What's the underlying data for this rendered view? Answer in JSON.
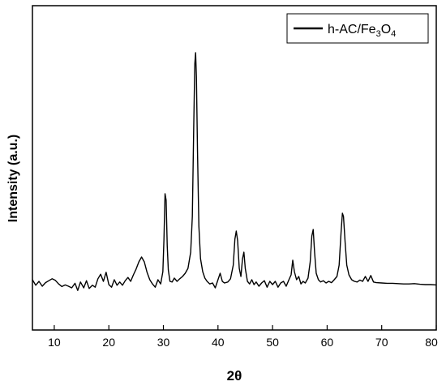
{
  "chart_data": {
    "type": "line",
    "xlabel": "2θ",
    "ylabel": "Intensity (a.u.)",
    "xlim": [
      6,
      80
    ],
    "ylim": [
      0,
      100
    ],
    "y_ticks_shown": false,
    "x_ticks": [
      10,
      20,
      30,
      40,
      50,
      60,
      70,
      80
    ],
    "legend_position": "top-right",
    "grid": false,
    "series": [
      {
        "name": "h-AC/Fe3O4",
        "legend_parts": {
          "prefix": "h-AC/Fe",
          "sub1": "3",
          "mid": "O",
          "sub2": "4"
        },
        "color": "#000000",
        "points": [
          [
            6.0,
            15.5
          ],
          [
            6.6,
            13.8
          ],
          [
            7.2,
            15.0
          ],
          [
            7.8,
            13.5
          ],
          [
            8.4,
            14.6
          ],
          [
            9.0,
            15.2
          ],
          [
            9.6,
            15.8
          ],
          [
            10.2,
            15.3
          ],
          [
            10.8,
            14.2
          ],
          [
            11.4,
            13.4
          ],
          [
            12.0,
            13.9
          ],
          [
            12.6,
            13.5
          ],
          [
            13.2,
            13.0
          ],
          [
            13.8,
            14.4
          ],
          [
            14.3,
            12.2
          ],
          [
            14.8,
            14.8
          ],
          [
            15.4,
            13.0
          ],
          [
            15.9,
            15.2
          ],
          [
            16.4,
            12.8
          ],
          [
            17.0,
            13.8
          ],
          [
            17.5,
            13.2
          ],
          [
            18.0,
            15.8
          ],
          [
            18.5,
            17.2
          ],
          [
            19.0,
            15.0
          ],
          [
            19.5,
            17.8
          ],
          [
            20.0,
            14.0
          ],
          [
            20.5,
            13.2
          ],
          [
            21.0,
            15.5
          ],
          [
            21.5,
            13.8
          ],
          [
            22.0,
            14.8
          ],
          [
            22.5,
            13.8
          ],
          [
            23.0,
            15.2
          ],
          [
            23.5,
            16.2
          ],
          [
            24.0,
            15.0
          ],
          [
            24.5,
            17.0
          ],
          [
            25.0,
            18.8
          ],
          [
            25.5,
            21.0
          ],
          [
            26.0,
            22.5
          ],
          [
            26.5,
            21.0
          ],
          [
            27.0,
            17.8
          ],
          [
            27.5,
            15.5
          ],
          [
            28.0,
            14.2
          ],
          [
            28.5,
            13.2
          ],
          [
            29.0,
            15.5
          ],
          [
            29.5,
            14.2
          ],
          [
            29.9,
            18.0
          ],
          [
            30.1,
            28.0
          ],
          [
            30.3,
            42.0
          ],
          [
            30.5,
            40.0
          ],
          [
            30.7,
            26.0
          ],
          [
            30.9,
            18.5
          ],
          [
            31.2,
            15.0
          ],
          [
            31.6,
            14.8
          ],
          [
            32.0,
            16.0
          ],
          [
            32.5,
            15.0
          ],
          [
            33.0,
            15.8
          ],
          [
            33.5,
            16.5
          ],
          [
            34.0,
            17.5
          ],
          [
            34.5,
            19.0
          ],
          [
            35.0,
            24.0
          ],
          [
            35.3,
            35.0
          ],
          [
            35.55,
            62.0
          ],
          [
            35.75,
            82.0
          ],
          [
            35.9,
            85.5
          ],
          [
            36.05,
            78.0
          ],
          [
            36.25,
            55.0
          ],
          [
            36.5,
            32.0
          ],
          [
            36.8,
            22.0
          ],
          [
            37.2,
            18.0
          ],
          [
            37.6,
            16.0
          ],
          [
            38.0,
            15.0
          ],
          [
            38.5,
            14.2
          ],
          [
            39.0,
            14.5
          ],
          [
            39.5,
            13.0
          ],
          [
            40.0,
            15.5
          ],
          [
            40.4,
            17.5
          ],
          [
            40.8,
            15.0
          ],
          [
            41.2,
            14.5
          ],
          [
            41.8,
            14.8
          ],
          [
            42.3,
            15.8
          ],
          [
            42.8,
            20.0
          ],
          [
            43.1,
            28.0
          ],
          [
            43.35,
            30.5
          ],
          [
            43.6,
            27.5
          ],
          [
            43.9,
            19.0
          ],
          [
            44.2,
            16.5
          ],
          [
            44.5,
            22.0
          ],
          [
            44.75,
            24.0
          ],
          [
            45.0,
            19.0
          ],
          [
            45.4,
            15.0
          ],
          [
            45.8,
            14.2
          ],
          [
            46.2,
            15.5
          ],
          [
            46.6,
            14.0
          ],
          [
            47.0,
            14.8
          ],
          [
            47.5,
            13.5
          ],
          [
            48.0,
            14.5
          ],
          [
            48.5,
            15.2
          ],
          [
            49.0,
            13.2
          ],
          [
            49.5,
            15.0
          ],
          [
            50.0,
            14.0
          ],
          [
            50.5,
            15.0
          ],
          [
            51.0,
            13.2
          ],
          [
            51.5,
            14.5
          ],
          [
            52.0,
            15.0
          ],
          [
            52.5,
            13.5
          ],
          [
            53.0,
            15.5
          ],
          [
            53.4,
            17.0
          ],
          [
            53.7,
            21.5
          ],
          [
            54.0,
            18.0
          ],
          [
            54.4,
            15.5
          ],
          [
            54.8,
            16.5
          ],
          [
            55.2,
            14.2
          ],
          [
            55.6,
            15.0
          ],
          [
            56.0,
            14.5
          ],
          [
            56.5,
            16.0
          ],
          [
            56.9,
            21.0
          ],
          [
            57.2,
            29.0
          ],
          [
            57.45,
            31.0
          ],
          [
            57.7,
            24.0
          ],
          [
            58.0,
            17.5
          ],
          [
            58.4,
            15.5
          ],
          [
            58.8,
            14.8
          ],
          [
            59.3,
            15.2
          ],
          [
            59.8,
            14.5
          ],
          [
            60.3,
            15.0
          ],
          [
            60.8,
            14.6
          ],
          [
            61.3,
            15.5
          ],
          [
            61.8,
            16.5
          ],
          [
            62.2,
            20.0
          ],
          [
            62.55,
            30.0
          ],
          [
            62.8,
            36.0
          ],
          [
            63.0,
            35.0
          ],
          [
            63.3,
            27.0
          ],
          [
            63.6,
            20.0
          ],
          [
            64.0,
            17.0
          ],
          [
            64.5,
            15.5
          ],
          [
            65.0,
            15.0
          ],
          [
            65.5,
            14.8
          ],
          [
            66.0,
            15.4
          ],
          [
            66.5,
            15.0
          ],
          [
            67.0,
            16.5
          ],
          [
            67.5,
            15.0
          ],
          [
            68.0,
            16.8
          ],
          [
            68.5,
            14.8
          ],
          [
            69.0,
            14.6
          ],
          [
            70.0,
            14.5
          ],
          [
            71.0,
            14.4
          ],
          [
            72.0,
            14.4
          ],
          [
            73.0,
            14.3
          ],
          [
            74.0,
            14.2
          ],
          [
            75.0,
            14.2
          ],
          [
            76.0,
            14.3
          ],
          [
            77.0,
            14.1
          ],
          [
            78.0,
            14.0
          ],
          [
            79.0,
            14.0
          ],
          [
            80.0,
            13.9
          ]
        ]
      }
    ]
  }
}
